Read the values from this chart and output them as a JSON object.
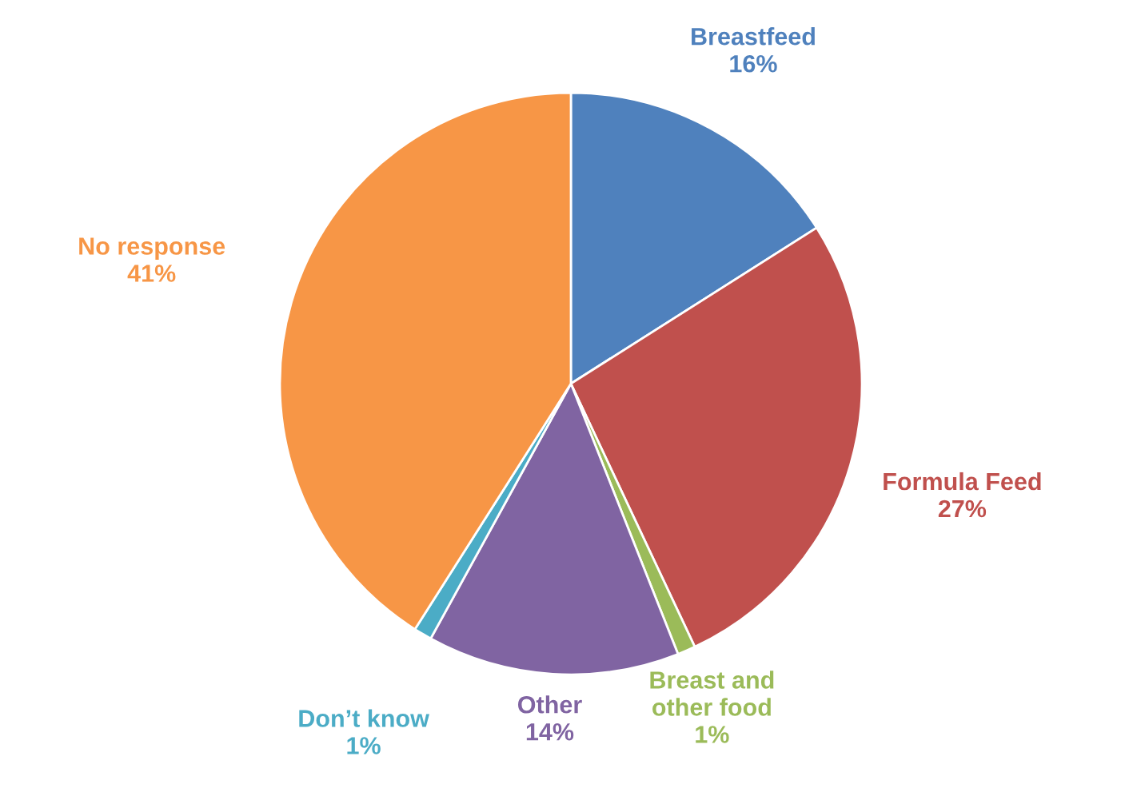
{
  "chart_data": {
    "type": "pie",
    "categories": [
      "Breastfeed",
      "Formula Feed",
      "Breast and other food",
      "Other",
      "Don’t know",
      "No response"
    ],
    "values": [
      16,
      27,
      1,
      14,
      1,
      41
    ],
    "value_labels": [
      "16%",
      "27%",
      "1%",
      "14%",
      "1%",
      "41%"
    ],
    "colors": [
      "#4f81bd",
      "#c0504d",
      "#9bbb59",
      "#8064a2",
      "#4bacc6",
      "#f79646"
    ],
    "legend": false
  }
}
